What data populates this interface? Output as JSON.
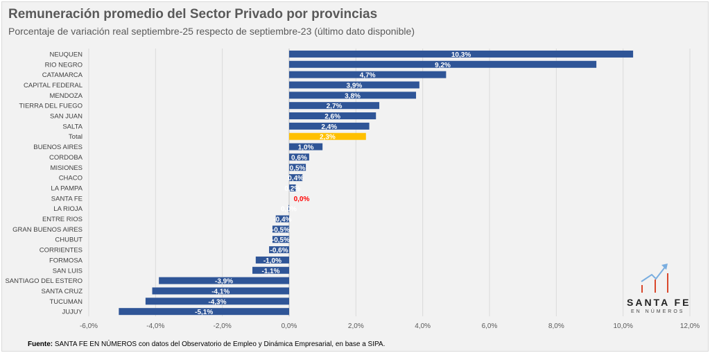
{
  "chart_data": {
    "type": "bar",
    "orientation": "horizontal",
    "title": "Remuneración promedio del Sector Privado por provincias",
    "subtitle": "Porcentaje de variación real septiembre-25 respecto de septiembre-23 (último dato disponible)",
    "categories": [
      "NEUQUEN",
      "RIO NEGRO",
      "CATAMARCA",
      "CAPITAL FEDERAL",
      "MENDOZA",
      "TIERRA DEL FUEGO",
      "SAN JUAN",
      "SALTA",
      "Total",
      "BUENOS AIRES",
      "CORDOBA",
      "MISIONES",
      "CHACO",
      "LA PAMPA",
      "SANTA FE",
      "LA RIOJA",
      "ENTRE RIOS",
      "GRAN BUENOS AIRES",
      "CHUBUT",
      "CORRIENTES",
      "FORMOSA",
      "SAN LUIS",
      "SANTIAGO DEL ESTERO",
      "SANTA CRUZ",
      "TUCUMAN",
      "JUJUY"
    ],
    "values": [
      10.3,
      9.2,
      4.7,
      3.9,
      3.8,
      2.7,
      2.6,
      2.4,
      2.3,
      1.0,
      0.6,
      0.5,
      0.4,
      0.2,
      0.0,
      -0.02,
      -0.4,
      -0.5,
      -0.5,
      -0.6,
      -1.0,
      -1.1,
      -3.9,
      -4.1,
      -4.3,
      -5.1
    ],
    "data_labels": [
      "10,3%",
      "9,2%",
      "4,7%",
      "3,9%",
      "3,8%",
      "2,7%",
      "2,6%",
      "2,4%",
      "2,3%",
      "1,0%",
      "0,6%",
      "0,5%",
      "0,4%",
      "0,2%",
      "0,0%",
      "0,0%",
      "-0,4%",
      "-0,5%",
      "-0,5%",
      "-0,6%",
      "-1,0%",
      "-1,1%",
      "-3,9%",
      "-4,1%",
      "-4,3%",
      "-5,1%"
    ],
    "xlim": [
      -6,
      12
    ],
    "xticks": [
      "-6,0%",
      "-4,0%",
      "-2,0%",
      "0,0%",
      "2,0%",
      "4,0%",
      "6,0%",
      "8,0%",
      "10,0%",
      "12,0%"
    ],
    "grid": "vertical",
    "colors": {
      "default": "#2f5597",
      "Total": "#ffc000",
      "SANTA FE": "#ff0000"
    }
  },
  "footer": {
    "label": "Fuente:",
    "text": " SANTA FE EN NÚMEROS con datos del Observatorio de Empleo y Dinámica Empresarial, en base a SIPA."
  },
  "logo": {
    "name": "SANTA FE",
    "sub": "EN NÚMEROS"
  }
}
